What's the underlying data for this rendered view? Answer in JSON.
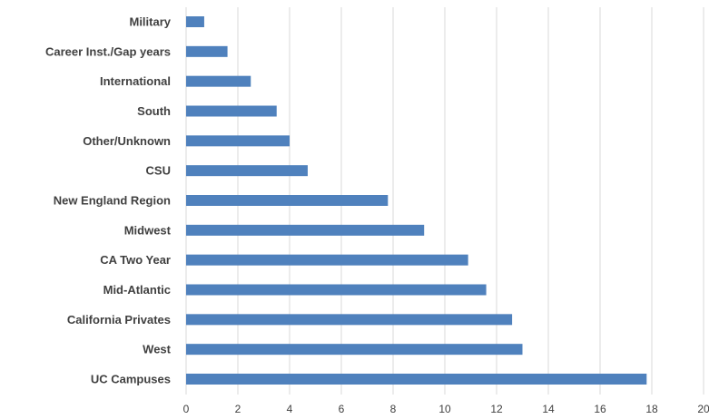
{
  "chart_data": {
    "type": "bar",
    "orientation": "horizontal",
    "categories": [
      "Military",
      "Career Inst./Gap years",
      "International",
      "South",
      "Other/Unknown",
      "CSU",
      "New England Region",
      "Midwest",
      "CA Two Year",
      "Mid-Atlantic",
      "California Privates",
      "West",
      "UC Campuses"
    ],
    "values": [
      0.7,
      1.6,
      2.5,
      3.5,
      4.0,
      4.7,
      7.8,
      9.2,
      10.9,
      11.6,
      12.6,
      13.0,
      17.8
    ],
    "xlim": [
      0,
      20
    ],
    "xticks": [
      "0",
      "2",
      "4",
      "6",
      "8",
      "10",
      "12",
      "14",
      "16",
      "18",
      "20"
    ],
    "grid": "vertical",
    "bar_color": "#4f81bd",
    "grid_color": "#d9d9d9"
  }
}
